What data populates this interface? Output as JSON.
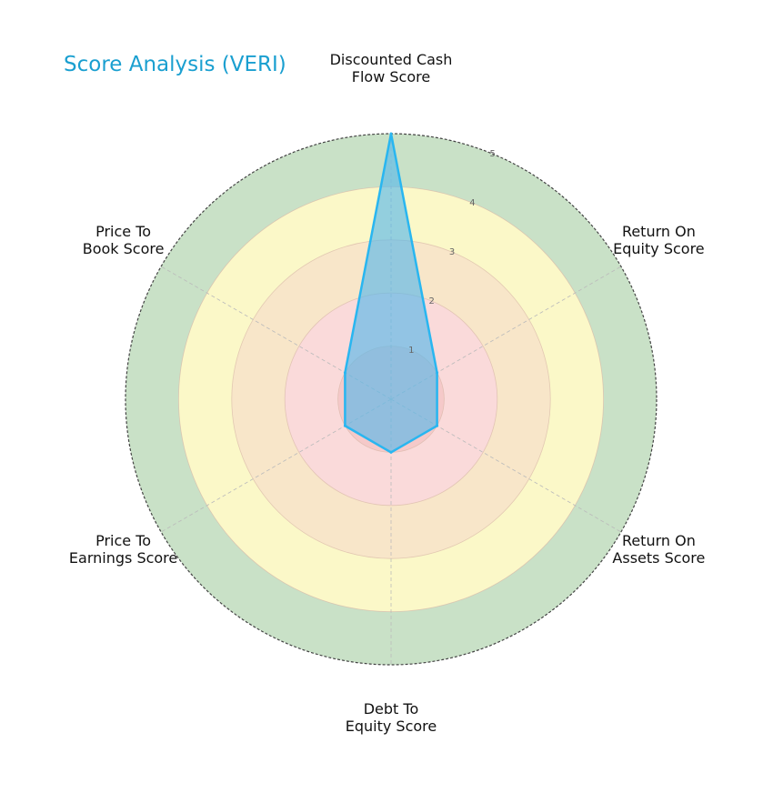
{
  "chart_data": {
    "type": "radar",
    "title": "Score Analysis (VERI)",
    "axes": [
      {
        "label_lines": [
          "Discounted Cash",
          "Flow Score"
        ],
        "value": 5
      },
      {
        "label_lines": [
          "Return On",
          "Equity Score"
        ],
        "value": 1
      },
      {
        "label_lines": [
          "Return On",
          "Assets Score"
        ],
        "value": 1
      },
      {
        "label_lines": [
          "Debt To",
          "Equity Score"
        ],
        "value": 1
      },
      {
        "label_lines": [
          "Price To",
          "Earnings Score"
        ],
        "value": 1
      },
      {
        "label_lines": [
          "Price To",
          "Book Score"
        ],
        "value": 1
      }
    ],
    "rlim": [
      0,
      5
    ],
    "rticks": [
      1,
      2,
      3,
      4,
      5
    ],
    "bands": [
      {
        "from": 0,
        "to": 1,
        "color": "#f5c9c9"
      },
      {
        "from": 1,
        "to": 2,
        "color": "#fadada"
      },
      {
        "from": 2,
        "to": 3,
        "color": "#f8e6c9"
      },
      {
        "from": 3,
        "to": 4,
        "color": "#fbf8c8"
      },
      {
        "from": 4,
        "to": 5,
        "color": "#c9e1c7"
      }
    ],
    "series_color": "#29b6f0",
    "series_fill": "#5ab9ea",
    "grid": true
  }
}
